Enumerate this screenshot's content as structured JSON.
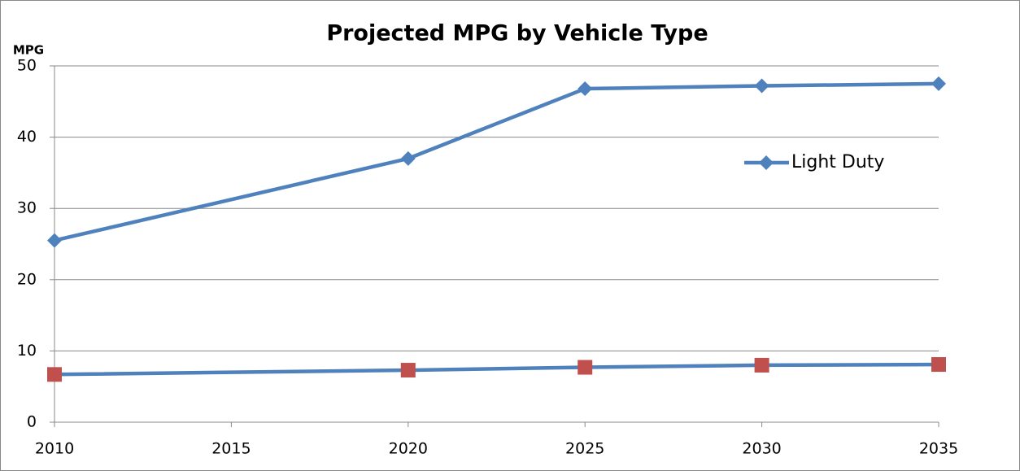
{
  "chart_data": {
    "type": "line",
    "title": "Projected MPG by Vehicle Type",
    "y_label": "MPG",
    "x": [
      2010,
      2020,
      2025,
      2030,
      2035
    ],
    "series": [
      {
        "name": "Light Duty",
        "color": "#4f81bd",
        "marker": "diamond",
        "marker_color": "#4f81bd",
        "values": [
          25.5,
          37,
          46.8,
          47.2,
          47.5
        ]
      },
      {
        "color": "#4f81bd",
        "marker": "square",
        "marker_color": "#c0504d",
        "values": [
          6.7,
          7.3,
          7.7,
          8.0,
          8.1
        ]
      }
    ],
    "xlim": [
      2010,
      2035
    ],
    "xticks": [
      2010,
      2015,
      2020,
      2025,
      2030,
      2035
    ],
    "ylim": [
      0,
      50
    ],
    "yticks": [
      0,
      10,
      20,
      30,
      40,
      50
    ],
    "grid": true
  }
}
